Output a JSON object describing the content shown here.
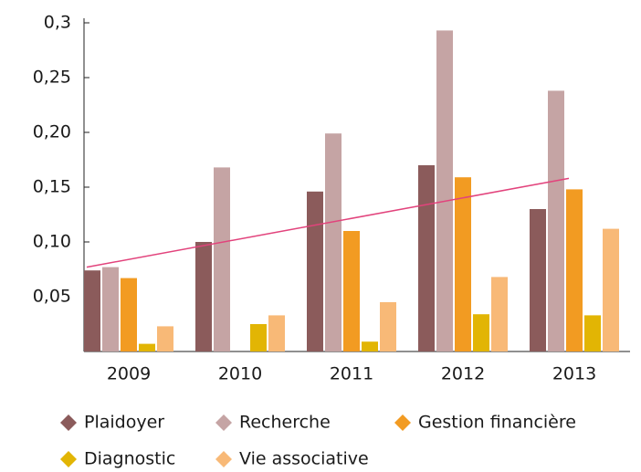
{
  "chart_data": {
    "type": "bar",
    "categories": [
      "2009",
      "2010",
      "2011",
      "2012",
      "2013"
    ],
    "series": [
      {
        "name": "Plaidoyer",
        "color": "#8b5b5b",
        "values": [
          0.074,
          0.1,
          0.146,
          0.17,
          0.13
        ]
      },
      {
        "name": "Recherche",
        "color": "#c5a4a4",
        "values": [
          0.077,
          0.168,
          0.199,
          0.293,
          0.238
        ]
      },
      {
        "name": "Gestion financière",
        "color": "#f29b22",
        "values": [
          0.067,
          null,
          0.11,
          0.159,
          0.148
        ]
      },
      {
        "name": "Diagnostic",
        "color": "#e2b504",
        "values": [
          0.007,
          0.025,
          0.009,
          0.034,
          0.033
        ]
      },
      {
        "name": "Vie associative",
        "color": "#f8b977",
        "values": [
          0.023,
          0.033,
          0.045,
          0.068,
          0.112
        ]
      }
    ],
    "trendline": {
      "color": "#e2437c",
      "values": [
        0.077,
        0.158
      ]
    },
    "ylim": [
      0,
      0.3
    ],
    "yticks": [
      {
        "value": 0.05,
        "label": "0,05"
      },
      {
        "value": 0.1,
        "label": "0,10"
      },
      {
        "value": 0.15,
        "label": "0,15"
      },
      {
        "value": 0.2,
        "label": "0,20"
      },
      {
        "value": 0.25,
        "label": "0,25"
      },
      {
        "value": 0.3,
        "label": "0,3"
      }
    ]
  }
}
